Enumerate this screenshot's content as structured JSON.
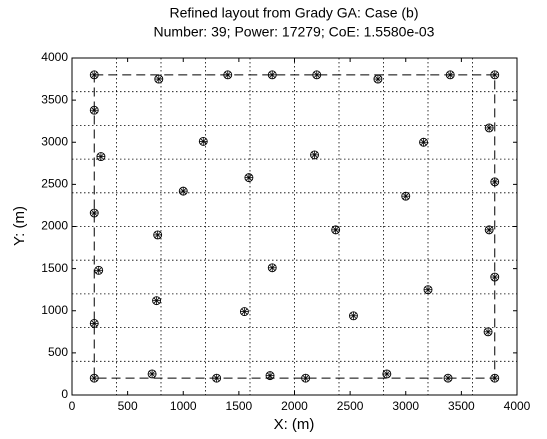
{
  "chart_data": {
    "type": "scatter",
    "title": "Refined layout from Grady GA: Case (b)",
    "subtitle": "Number: 39; Power: 17279; CoE: 1.5580e-03",
    "x_label": "X: (m)",
    "y_label": "Y: (m)",
    "x": [
      200,
      780,
      1400,
      1800,
      2200,
      2750,
      3400,
      3800,
      200,
      260,
      200,
      240,
      200,
      200,
      720,
      1300,
      1780,
      2100,
      2830,
      3380,
      3800,
      3750,
      3800,
      3750,
      3800,
      3740,
      1180,
      1000,
      1590,
      770,
      1800,
      760,
      1550,
      2180,
      2370,
      2530,
      3160,
      3000,
      3200
    ],
    "values": [
      3800,
      3750,
      3800,
      3800,
      3800,
      3750,
      3800,
      3800,
      3380,
      2830,
      2160,
      1480,
      850,
      200,
      250,
      200,
      230,
      200,
      250,
      200,
      200,
      3170,
      2530,
      1960,
      1400,
      750,
      3010,
      2420,
      2580,
      1900,
      1510,
      1120,
      990,
      2850,
      1960,
      940,
      3000,
      2360,
      1250
    ],
    "color": "#000000",
    "xlim": [
      0,
      4000
    ],
    "ylim": [
      0,
      4000
    ],
    "xticks": [
      0,
      500,
      1000,
      1500,
      2000,
      2500,
      3000,
      3500,
      4000
    ],
    "yticks": [
      0,
      500,
      1000,
      1500,
      2000,
      2500,
      3000,
      3500,
      4000
    ],
    "xgrid": [
      400,
      800,
      1200,
      1600,
      2000,
      2400,
      2800,
      3200,
      3600
    ],
    "ygrid": [
      400,
      800,
      1200,
      1600,
      2000,
      2400,
      2800,
      3200,
      3600
    ],
    "boundary": {
      "x": [
        200,
        3800
      ],
      "y": [
        200,
        3800
      ]
    }
  }
}
